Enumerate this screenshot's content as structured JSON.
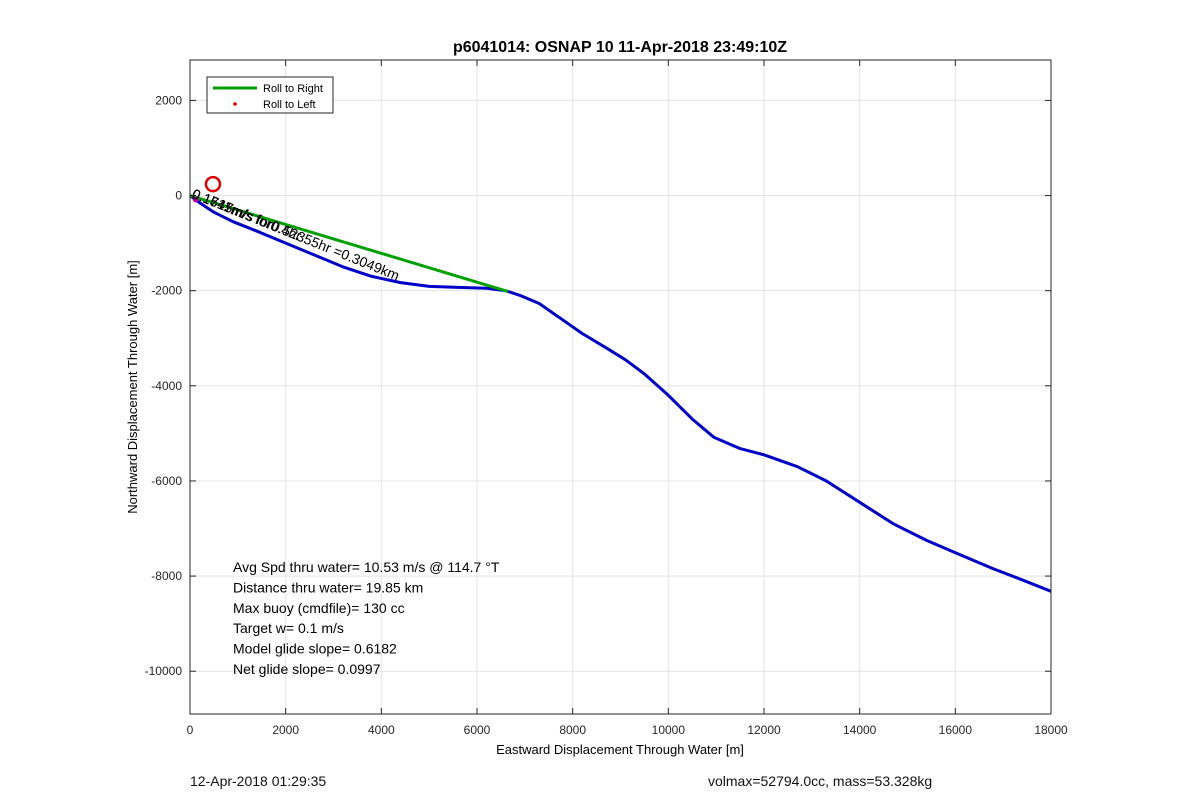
{
  "chart_data": {
    "type": "line",
    "title": "p6041014: OSNAP 10 11-Apr-2018 23:49:10Z",
    "xlabel": "Eastward Displacement Through Water [m]",
    "ylabel": "Northward Displacement Through Water [m]",
    "xlim": [
      0,
      18000
    ],
    "ylim": [
      -10900,
      2850
    ],
    "xticks": [
      0,
      2000,
      4000,
      6000,
      8000,
      10000,
      12000,
      14000,
      16000,
      18000
    ],
    "yticks": [
      -10000,
      -8000,
      -6000,
      -4000,
      -2000,
      0,
      2000
    ],
    "grid": true,
    "legend_position": "top-left",
    "legend": [
      {
        "label": "Roll to Right",
        "color": "#00a000",
        "style": "line"
      },
      {
        "label": "Roll to Left",
        "color": "#e00000",
        "style": "dot"
      }
    ],
    "series": [
      {
        "color": "#0000c8",
        "x": [
          0,
          200,
          500,
          900,
          1400,
          2000,
          2600,
          3200,
          3800,
          4400,
          5000,
          5600,
          6200,
          6600,
          6900,
          7300,
          7700,
          8200,
          8700,
          9100,
          9500,
          10000,
          10500,
          10950,
          11500,
          12000,
          12700,
          13300,
          14000,
          14700,
          15400,
          16100,
          16800,
          17500,
          18000
        ],
        "y": [
          0,
          -150,
          -350,
          -550,
          -750,
          -1000,
          -1250,
          -1500,
          -1700,
          -1830,
          -1910,
          -1930,
          -1950,
          -2000,
          -2100,
          -2270,
          -2550,
          -2900,
          -3200,
          -3450,
          -3750,
          -4200,
          -4700,
          -5080,
          -5320,
          -5450,
          -5700,
          -6000,
          -6450,
          -6900,
          -7250,
          -7550,
          -7850,
          -8120,
          -8320
        ]
      },
      {
        "color": "#00a000",
        "x": [
          0,
          6650
        ],
        "y": [
          0,
          -2020
        ]
      }
    ],
    "markers": [
      {
        "type": "circle",
        "x": 480,
        "y": 240,
        "color": "#e00000"
      },
      {
        "type": "dot",
        "x": 120,
        "y": -80,
        "color": "#b000b0"
      }
    ],
    "annotations": [
      {
        "text": "0.1617m/s for0.52355hr =0.3049km",
        "x": 20,
        "y": -40,
        "rotation": 22
      },
      {
        "text": "0.1711m/s for0.4hr",
        "x": 20,
        "y": -40,
        "rotation": 22
      },
      {
        "text": "0.1545m/s",
        "x": 20,
        "y": -40,
        "rotation": 22
      }
    ],
    "stats_text": [
      "Avg Spd thru water= 10.53 m/s @ 114.7 °T",
      "Distance thru water= 19.85 km",
      "Max buoy (cmdfile)= 130 cc",
      "Target w= 0.1 m/s",
      "Model glide slope= 0.6182",
      "Net glide slope= 0.0997"
    ]
  },
  "footer": {
    "timestamp": "12-Apr-2018 01:29:35",
    "volmax_mass": "volmax=52794.0cc, mass=53.328kg"
  }
}
